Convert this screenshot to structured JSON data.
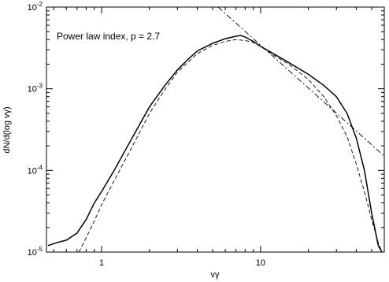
{
  "chart_data": {
    "type": "line",
    "title": "",
    "xlabel": "vγ",
    "ylabel": "dN/d(log vγ)",
    "xscale": "log",
    "yscale": "log",
    "xlim": [
      0.45,
      60
    ],
    "ylim": [
      1e-05,
      0.01
    ],
    "grid": false,
    "annotation": "Power law index, p = 2.7",
    "x_ticks": [
      {
        "value": 1,
        "label": "1"
      },
      {
        "value": 10,
        "label": "10"
      }
    ],
    "y_ticks": [
      {
        "value": 1e-05,
        "base": "10",
        "exp": "-5"
      },
      {
        "value": 0.0001,
        "base": "10",
        "exp": "-4"
      },
      {
        "value": 0.001,
        "base": "10",
        "exp": "-3"
      },
      {
        "value": 0.01,
        "base": "10",
        "exp": "-2"
      }
    ],
    "series": [
      {
        "style": "solid",
        "x": [
          0.46,
          0.52,
          0.6,
          0.7,
          0.8,
          0.9,
          1.0,
          1.2,
          1.5,
          2.0,
          2.5,
          3.0,
          3.5,
          4.0,
          5.0,
          6.0,
          7.0,
          7.5,
          8.0,
          9.0,
          10,
          12,
          15,
          20,
          25,
          30,
          35,
          40,
          45,
          50,
          55,
          58
        ],
        "y": [
          1.2e-05,
          1.3e-05,
          1.4e-05,
          1.7e-05,
          2.5e-05,
          4e-05,
          5.5e-05,
          0.0001,
          0.00022,
          0.0006,
          0.0011,
          0.0017,
          0.0023,
          0.0029,
          0.0036,
          0.0041,
          0.0044,
          0.0045,
          0.0043,
          0.0038,
          0.0033,
          0.0027,
          0.0021,
          0.0015,
          0.0011,
          0.0008,
          0.0005,
          0.00025,
          0.0001,
          3e-05,
          1.2e-05,
          1e-05
        ]
      },
      {
        "style": "dashed",
        "x": [
          0.72,
          0.8,
          0.9,
          1.0,
          1.2,
          1.5,
          2.0,
          2.5,
          3.0,
          4.0,
          5.0,
          6.0,
          7.0,
          8.0,
          9.0,
          10,
          12,
          15,
          20,
          25,
          30,
          35,
          40,
          45,
          50,
          55,
          58
        ],
        "y": [
          1e-05,
          1.5e-05,
          2.4e-05,
          3.8e-05,
          7.5e-05,
          0.00017,
          0.0005,
          0.00098,
          0.0016,
          0.0027,
          0.0034,
          0.0038,
          0.004,
          0.0039,
          0.0037,
          0.0033,
          0.0026,
          0.002,
          0.0013,
          0.0008,
          0.00047,
          0.00026,
          0.00012,
          5.5e-05,
          2.5e-05,
          1.3e-05,
          1e-05
        ]
      },
      {
        "style": "dash-dot",
        "x": [
          5.4,
          60
        ],
        "y": [
          0.01,
          0.00015
        ]
      }
    ]
  }
}
